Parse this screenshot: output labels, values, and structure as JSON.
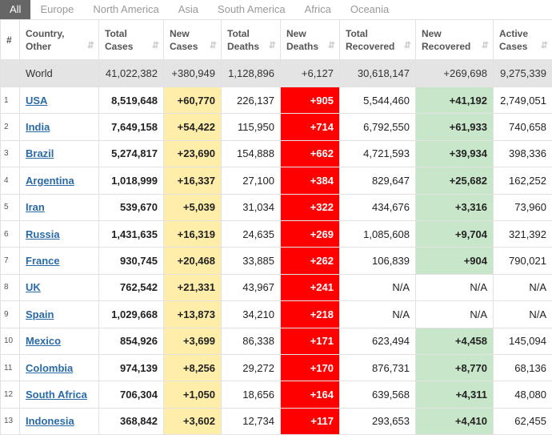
{
  "tabs": [
    "All",
    "Europe",
    "North America",
    "Asia",
    "South America",
    "Africa",
    "Oceania"
  ],
  "table": {
    "headers": [
      "#",
      "Country,\nOther",
      "Total\nCases",
      "New\nCases",
      "Total\nDeaths",
      "New\nDeaths",
      "Total\nRecovered",
      "New\nRecovered",
      "Active\nCases"
    ],
    "world": [
      "World",
      "41,022,382",
      "+380,949",
      "1,128,896",
      "+6,127",
      "30,618,147",
      "+269,698",
      "9,275,339"
    ],
    "rows": [
      [
        "1",
        "USA",
        "8,519,648",
        "+60,770",
        "226,137",
        "+905",
        "5,544,460",
        "+41,192",
        "2,749,051"
      ],
      [
        "2",
        "India",
        "7,649,158",
        "+54,422",
        "115,950",
        "+714",
        "6,792,550",
        "+61,933",
        "740,658"
      ],
      [
        "3",
        "Brazil",
        "5,274,817",
        "+23,690",
        "154,888",
        "+662",
        "4,721,593",
        "+39,934",
        "398,336"
      ],
      [
        "4",
        "Argentina",
        "1,018,999",
        "+16,337",
        "27,100",
        "+384",
        "829,647",
        "+25,682",
        "162,252"
      ],
      [
        "5",
        "Iran",
        "539,670",
        "+5,039",
        "31,034",
        "+322",
        "434,676",
        "+3,316",
        "73,960"
      ],
      [
        "6",
        "Russia",
        "1,431,635",
        "+16,319",
        "24,635",
        "+269",
        "1,085,608",
        "+9,704",
        "321,392"
      ],
      [
        "7",
        "France",
        "930,745",
        "+20,468",
        "33,885",
        "+262",
        "106,839",
        "+904",
        "790,021"
      ],
      [
        "8",
        "UK",
        "762,542",
        "+21,331",
        "43,967",
        "+241",
        "N/A",
        "N/A",
        "N/A"
      ],
      [
        "9",
        "Spain",
        "1,029,668",
        "+13,873",
        "34,210",
        "+218",
        "N/A",
        "N/A",
        "N/A"
      ],
      [
        "10",
        "Mexico",
        "854,926",
        "+3,699",
        "86,338",
        "+171",
        "623,494",
        "+4,458",
        "145,094"
      ],
      [
        "11",
        "Colombia",
        "974,139",
        "+8,256",
        "29,272",
        "+170",
        "876,731",
        "+8,770",
        "68,136"
      ],
      [
        "12",
        "South Africa",
        "706,304",
        "+1,050",
        "18,656",
        "+164",
        "639,568",
        "+4,311",
        "48,080"
      ],
      [
        "13",
        "Indonesia",
        "368,842",
        "+3,602",
        "12,734",
        "+117",
        "293,653",
        "+4,410",
        "62,455"
      ]
    ]
  }
}
